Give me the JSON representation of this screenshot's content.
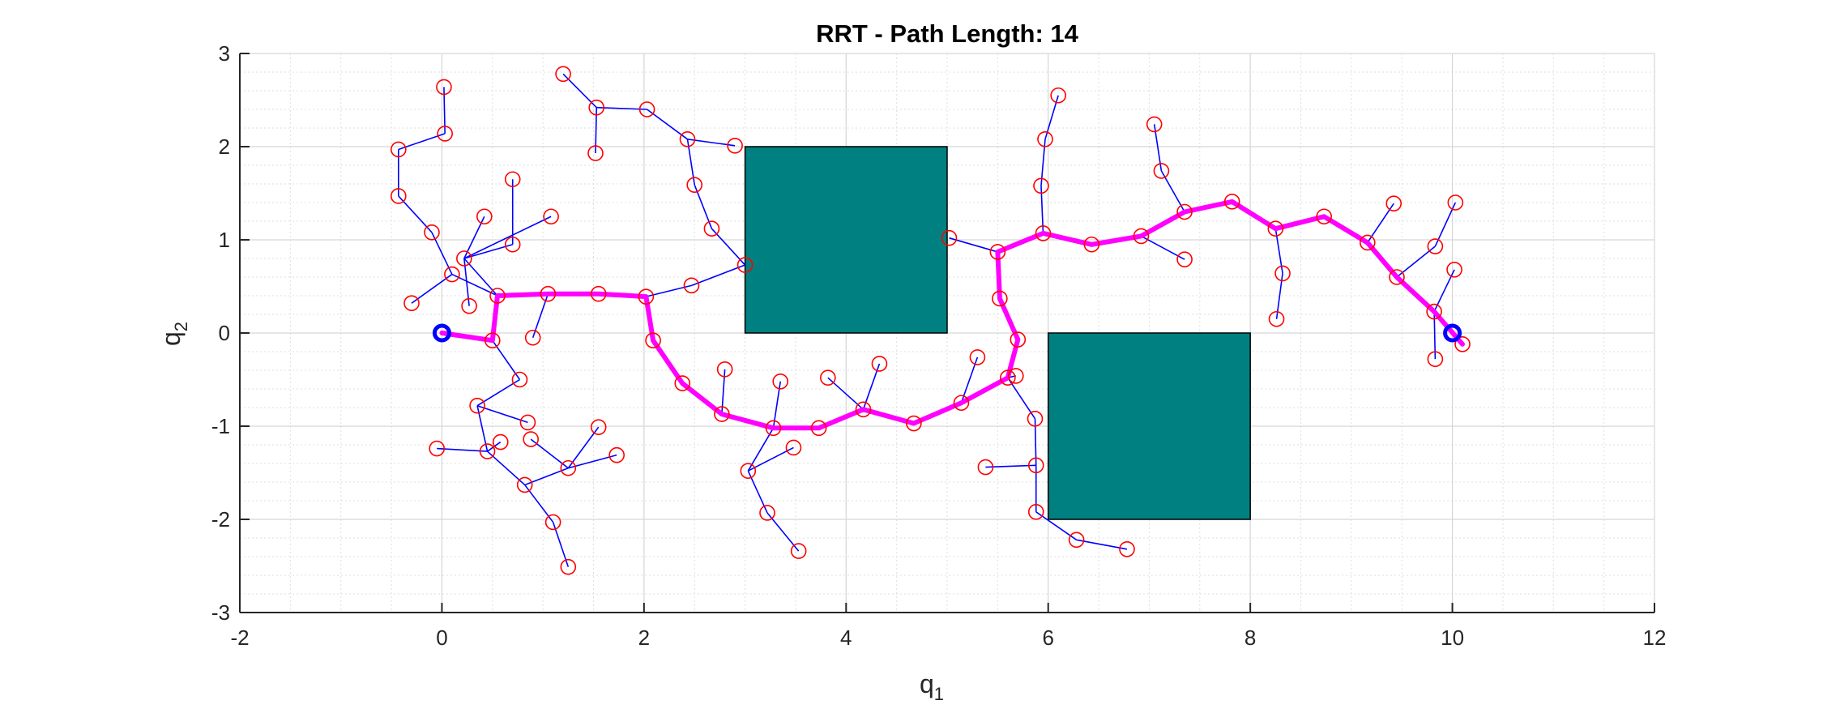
{
  "chart_data": {
    "type": "scatter",
    "title": "RRT - Path Length: 14",
    "xlabel": {
      "main": "q",
      "sub": "1"
    },
    "ylabel": {
      "main": "q",
      "sub": "2"
    },
    "xlim": [
      -2,
      12
    ],
    "ylim": [
      -3,
      3
    ],
    "xticks": [
      -2,
      0,
      2,
      4,
      6,
      8,
      10,
      12
    ],
    "yticks": [
      -3,
      -2,
      -1,
      0,
      1,
      2,
      3
    ],
    "grid": true,
    "minor_grid": true,
    "colors": {
      "obstacle": "#008080",
      "node": "#ff0000",
      "edge": "#0000ff",
      "path": "#ff00ff",
      "start_goal": "#0000ff",
      "grid": "#dfdfdf",
      "axis": "#262626"
    },
    "obstacles": [
      {
        "x": 3,
        "y": 0,
        "w": 2,
        "h": 2
      },
      {
        "x": 6,
        "y": -2,
        "w": 2,
        "h": 2
      }
    ],
    "start": [
      0,
      0
    ],
    "goal": [
      10,
      0
    ],
    "nodes": [
      [
        0,
        0
      ],
      [
        0.55,
        0.4
      ],
      [
        1.05,
        0.42
      ],
      [
        1.55,
        0.42
      ],
      [
        2.02,
        0.39
      ],
      [
        2.47,
        0.51
      ],
      [
        3.0,
        0.73
      ],
      [
        0.1,
        0.63
      ],
      [
        -0.3,
        0.32
      ],
      [
        -0.1,
        1.08
      ],
      [
        -0.43,
        1.47
      ],
      [
        -0.43,
        1.97
      ],
      [
        0.03,
        2.14
      ],
      [
        0.02,
        2.64
      ],
      [
        0.27,
        0.29
      ],
      [
        0.22,
        0.8
      ],
      [
        0.42,
        1.25
      ],
      [
        0.7,
        1.65
      ],
      [
        0.7,
        0.95
      ],
      [
        1.08,
        1.25
      ],
      [
        0.9,
        -0.05
      ],
      [
        0.5,
        -0.08
      ],
      [
        0.77,
        -0.5
      ],
      [
        0.35,
        -0.78
      ],
      [
        0.45,
        -1.27
      ],
      [
        -0.05,
        -1.24
      ],
      [
        0.58,
        -1.17
      ],
      [
        0.82,
        -1.63
      ],
      [
        0.85,
        -0.96
      ],
      [
        0.88,
        -1.14
      ],
      [
        1.25,
        -1.45
      ],
      [
        1.55,
        -1.01
      ],
      [
        1.73,
        -1.31
      ],
      [
        1.1,
        -2.03
      ],
      [
        1.25,
        -2.51
      ],
      [
        2.09,
        -0.08
      ],
      [
        2.38,
        -0.54
      ],
      [
        2.77,
        -0.87
      ],
      [
        3.28,
        -1.02
      ],
      [
        3.73,
        -1.02
      ],
      [
        4.17,
        -0.82
      ],
      [
        4.67,
        -0.97
      ],
      [
        5.14,
        -0.75
      ],
      [
        5.6,
        -0.48
      ],
      [
        5.7,
        -0.07
      ],
      [
        5.52,
        0.37
      ],
      [
        5.5,
        0.87
      ],
      [
        5.95,
        1.07
      ],
      [
        6.43,
        0.95
      ],
      [
        6.92,
        1.04
      ],
      [
        7.35,
        1.3
      ],
      [
        7.82,
        1.41
      ],
      [
        8.25,
        1.12
      ],
      [
        8.73,
        1.25
      ],
      [
        9.16,
        0.97
      ],
      [
        9.45,
        0.6
      ],
      [
        9.82,
        0.23
      ],
      [
        10.1,
        -0.12
      ],
      [
        2.8,
        -0.39
      ],
      [
        3.35,
        -0.52
      ],
      [
        3.22,
        -1.93
      ],
      [
        3.03,
        -1.48
      ],
      [
        3.48,
        -1.23
      ],
      [
        3.53,
        -2.34
      ],
      [
        3.82,
        -0.48
      ],
      [
        4.33,
        -0.33
      ],
      [
        5.38,
        -1.44
      ],
      [
        5.3,
        -0.26
      ],
      [
        5.68,
        -0.46
      ],
      [
        5.87,
        -0.92
      ],
      [
        5.88,
        -1.42
      ],
      [
        5.88,
        -1.92
      ],
      [
        6.28,
        -2.22
      ],
      [
        6.78,
        -2.32
      ],
      [
        5.02,
        1.02
      ],
      [
        5.97,
        2.08
      ],
      [
        5.93,
        1.58
      ],
      [
        6.1,
        2.55
      ],
      [
        7.05,
        2.24
      ],
      [
        7.12,
        1.74
      ],
      [
        7.35,
        0.79
      ],
      [
        8.32,
        0.64
      ],
      [
        8.26,
        0.15
      ],
      [
        9.42,
        1.39
      ],
      [
        9.83,
        0.93
      ],
      [
        10.03,
        1.4
      ],
      [
        10.02,
        0.68
      ],
      [
        9.83,
        -0.28
      ],
      [
        1.2,
        2.78
      ],
      [
        1.53,
        2.42
      ],
      [
        1.52,
        1.93
      ],
      [
        2.03,
        2.4
      ],
      [
        2.43,
        2.08
      ],
      [
        2.9,
        2.01
      ],
      [
        2.5,
        1.59
      ],
      [
        2.67,
        1.12
      ]
    ],
    "edges": [
      [
        0,
        0,
        0.5,
        -0.08
      ],
      [
        0.5,
        -0.08,
        0.55,
        0.4
      ],
      [
        0.55,
        0.4,
        1.05,
        0.42
      ],
      [
        1.05,
        0.42,
        1.55,
        0.42
      ],
      [
        1.55,
        0.42,
        2.02,
        0.39
      ],
      [
        2.02,
        0.39,
        2.47,
        0.51
      ],
      [
        2.47,
        0.51,
        3.0,
        0.73
      ],
      [
        0.55,
        0.4,
        0.1,
        0.63
      ],
      [
        0.1,
        0.63,
        -0.3,
        0.32
      ],
      [
        0.1,
        0.63,
        -0.1,
        1.08
      ],
      [
        -0.1,
        1.08,
        -0.43,
        1.47
      ],
      [
        -0.43,
        1.47,
        -0.43,
        1.97
      ],
      [
        -0.43,
        1.97,
        0.03,
        2.14
      ],
      [
        0.03,
        2.14,
        0.02,
        2.64
      ],
      [
        0.55,
        0.4,
        0.22,
        0.8
      ],
      [
        0.22,
        0.8,
        0.27,
        0.29
      ],
      [
        0.22,
        0.8,
        0.42,
        1.25
      ],
      [
        0.22,
        0.8,
        0.7,
        0.95
      ],
      [
        0.7,
        0.95,
        0.7,
        1.65
      ],
      [
        0.22,
        0.8,
        1.08,
        1.25
      ],
      [
        1.05,
        0.42,
        0.9,
        -0.05
      ],
      [
        0.5,
        -0.08,
        0.77,
        -0.5
      ],
      [
        0.77,
        -0.5,
        0.35,
        -0.78
      ],
      [
        0.35,
        -0.78,
        0.85,
        -0.96
      ],
      [
        0.35,
        -0.78,
        0.45,
        -1.27
      ],
      [
        0.45,
        -1.27,
        -0.05,
        -1.24
      ],
      [
        0.45,
        -1.27,
        0.58,
        -1.17
      ],
      [
        0.45,
        -1.27,
        0.82,
        -1.63
      ],
      [
        0.82,
        -1.63,
        1.25,
        -1.45
      ],
      [
        1.25,
        -1.45,
        0.88,
        -1.14
      ],
      [
        1.25,
        -1.45,
        1.55,
        -1.01
      ],
      [
        1.25,
        -1.45,
        1.73,
        -1.31
      ],
      [
        0.82,
        -1.63,
        1.1,
        -2.03
      ],
      [
        1.1,
        -2.03,
        1.25,
        -2.51
      ],
      [
        2.02,
        0.39,
        2.09,
        -0.08
      ],
      [
        2.09,
        -0.08,
        2.38,
        -0.54
      ],
      [
        2.38,
        -0.54,
        2.77,
        -0.87
      ],
      [
        2.77,
        -0.87,
        2.8,
        -0.39
      ],
      [
        2.77,
        -0.87,
        3.28,
        -1.02
      ],
      [
        3.28,
        -1.02,
        3.35,
        -0.52
      ],
      [
        3.28,
        -1.02,
        3.73,
        -1.02
      ],
      [
        3.28,
        -1.02,
        3.03,
        -1.48
      ],
      [
        3.03,
        -1.48,
        3.48,
        -1.23
      ],
      [
        3.03,
        -1.48,
        3.22,
        -1.93
      ],
      [
        3.22,
        -1.93,
        3.53,
        -2.34
      ],
      [
        3.73,
        -1.02,
        4.17,
        -0.82
      ],
      [
        4.17,
        -0.82,
        3.82,
        -0.48
      ],
      [
        4.17,
        -0.82,
        4.33,
        -0.33
      ],
      [
        4.17,
        -0.82,
        4.67,
        -0.97
      ],
      [
        4.67,
        -0.97,
        5.14,
        -0.75
      ],
      [
        5.14,
        -0.75,
        5.6,
        -0.48
      ],
      [
        5.14,
        -0.75,
        5.3,
        -0.26
      ],
      [
        5.6,
        -0.48,
        5.68,
        -0.46
      ],
      [
        5.6,
        -0.48,
        5.87,
        -0.92
      ],
      [
        5.87,
        -0.92,
        5.88,
        -1.42
      ],
      [
        5.88,
        -1.42,
        5.38,
        -1.44
      ],
      [
        5.88,
        -1.42,
        5.88,
        -1.92
      ],
      [
        5.88,
        -1.92,
        6.28,
        -2.22
      ],
      [
        6.28,
        -2.22,
        6.78,
        -2.32
      ],
      [
        5.6,
        -0.48,
        5.7,
        -0.07
      ],
      [
        5.7,
        -0.07,
        5.52,
        0.37
      ],
      [
        5.52,
        0.37,
        5.5,
        0.87
      ],
      [
        5.5,
        0.87,
        5.02,
        1.02
      ],
      [
        5.5,
        0.87,
        5.95,
        1.07
      ],
      [
        5.95,
        1.07,
        5.93,
        1.58
      ],
      [
        5.93,
        1.58,
        5.97,
        2.08
      ],
      [
        5.97,
        2.08,
        6.1,
        2.55
      ],
      [
        5.95,
        1.07,
        6.43,
        0.95
      ],
      [
        6.43,
        0.95,
        6.92,
        1.04
      ],
      [
        6.92,
        1.04,
        7.35,
        1.3
      ],
      [
        6.92,
        1.04,
        7.35,
        0.79
      ],
      [
        7.35,
        1.3,
        7.12,
        1.74
      ],
      [
        7.12,
        1.74,
        7.05,
        2.24
      ],
      [
        7.35,
        1.3,
        7.82,
        1.41
      ],
      [
        7.82,
        1.41,
        8.25,
        1.12
      ],
      [
        8.25,
        1.12,
        8.32,
        0.64
      ],
      [
        8.32,
        0.64,
        8.26,
        0.15
      ],
      [
        8.25,
        1.12,
        8.73,
        1.25
      ],
      [
        8.73,
        1.25,
        9.16,
        0.97
      ],
      [
        9.16,
        0.97,
        9.42,
        1.39
      ],
      [
        9.16,
        0.97,
        9.45,
        0.6
      ],
      [
        9.45,
        0.6,
        9.83,
        0.93
      ],
      [
        9.83,
        0.93,
        10.03,
        1.4
      ],
      [
        9.45,
        0.6,
        9.82,
        0.23
      ],
      [
        9.82,
        0.23,
        10.02,
        0.68
      ],
      [
        9.82,
        0.23,
        9.83,
        -0.28
      ],
      [
        9.82,
        0.23,
        10.1,
        -0.12
      ],
      [
        3.0,
        0.73,
        2.67,
        1.12
      ],
      [
        2.67,
        1.12,
        2.5,
        1.59
      ],
      [
        2.5,
        1.59,
        2.43,
        2.08
      ],
      [
        2.43,
        2.08,
        2.9,
        2.01
      ],
      [
        2.43,
        2.08,
        2.03,
        2.4
      ],
      [
        2.03,
        2.4,
        1.53,
        2.42
      ],
      [
        1.53,
        2.42,
        1.52,
        1.93
      ],
      [
        1.53,
        2.42,
        1.2,
        2.78
      ]
    ],
    "path": [
      [
        0,
        0
      ],
      [
        0.5,
        -0.08
      ],
      [
        0.55,
        0.4
      ],
      [
        1.05,
        0.42
      ],
      [
        1.55,
        0.42
      ],
      [
        2.02,
        0.39
      ],
      [
        2.09,
        -0.08
      ],
      [
        2.38,
        -0.54
      ],
      [
        2.77,
        -0.87
      ],
      [
        3.28,
        -1.02
      ],
      [
        3.73,
        -1.02
      ],
      [
        4.17,
        -0.82
      ],
      [
        4.67,
        -0.97
      ],
      [
        5.14,
        -0.75
      ],
      [
        5.6,
        -0.48
      ],
      [
        5.7,
        -0.07
      ],
      [
        5.52,
        0.37
      ],
      [
        5.5,
        0.87
      ],
      [
        5.95,
        1.07
      ],
      [
        6.43,
        0.95
      ],
      [
        6.92,
        1.04
      ],
      [
        7.35,
        1.3
      ],
      [
        7.82,
        1.41
      ],
      [
        8.25,
        1.12
      ],
      [
        8.73,
        1.25
      ],
      [
        9.16,
        0.97
      ],
      [
        9.45,
        0.6
      ],
      [
        9.82,
        0.23
      ],
      [
        10.1,
        -0.12
      ]
    ]
  }
}
